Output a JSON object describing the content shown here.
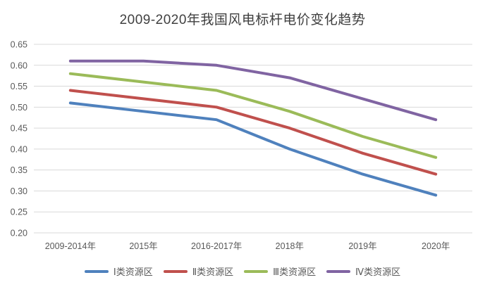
{
  "chart_data": {
    "type": "line",
    "title": "2009-2020年我国风电标杆电价变化趋势",
    "categories": [
      "2009-2014年",
      "2015年",
      "2016-2017年",
      "2018年",
      "2019年",
      "2020年"
    ],
    "series": [
      {
        "name": "Ⅰ类资源区",
        "color": "#4F81BD",
        "values": [
          0.51,
          0.49,
          0.47,
          0.4,
          0.34,
          0.29
        ]
      },
      {
        "name": "Ⅱ类资源区",
        "color": "#C0504D",
        "values": [
          0.54,
          0.52,
          0.5,
          0.45,
          0.39,
          0.34
        ]
      },
      {
        "name": "Ⅲ类资源区",
        "color": "#9BBB59",
        "values": [
          0.58,
          0.56,
          0.54,
          0.49,
          0.43,
          0.38
        ]
      },
      {
        "name": "Ⅳ类资源区",
        "color": "#8064A2",
        "values": [
          0.61,
          0.61,
          0.6,
          0.57,
          0.52,
          0.47
        ]
      }
    ],
    "xlabel": "",
    "ylabel": "",
    "y_axis": {
      "min": 0.2,
      "max": 0.65,
      "step": 0.05,
      "tick_labels": [
        "0.65",
        "0.60",
        "0.55",
        "0.50",
        "0.45",
        "0.40",
        "0.35",
        "0.30",
        "0.25",
        "0.20"
      ]
    },
    "grid": true,
    "legend_position": "bottom",
    "colors": {
      "gridline": "#D9D9D9",
      "axis_text": "#595959",
      "title_text": "#404040",
      "background": "#FFFFFF"
    }
  }
}
